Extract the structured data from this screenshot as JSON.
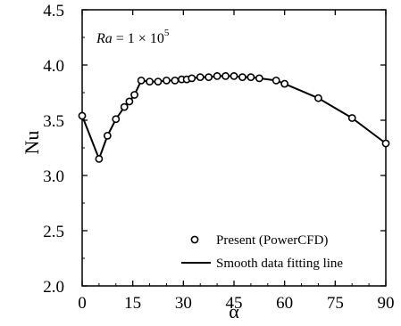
{
  "chart_data": {
    "type": "scatter",
    "title": "",
    "xlabel": "α",
    "ylabel": "Nu",
    "xlim": [
      0,
      90
    ],
    "ylim": [
      2.0,
      4.5
    ],
    "xticks": [
      "0",
      "15",
      "30",
      "45",
      "60",
      "75",
      "90"
    ],
    "xtick_values": [
      0,
      15,
      30,
      45,
      60,
      75,
      90
    ],
    "yticks": [
      "2.0",
      "2.5",
      "3.0",
      "3.5",
      "4.0",
      "4.5"
    ],
    "ytick_values": [
      2.0,
      2.5,
      3.0,
      3.5,
      4.0,
      4.5
    ],
    "annotation": {
      "italic_part": "Ra",
      "rest": " = 1 × 10",
      "superscript": "5"
    },
    "legend_position": "bottom-right",
    "series": [
      {
        "name": "Present (PowerCFD)",
        "marker": "open-circle",
        "x": [
          0,
          5,
          7.5,
          10,
          12.5,
          14,
          15.5,
          17.5,
          20,
          22.5,
          25,
          27.5,
          29.5,
          31,
          32.5,
          35,
          37.5,
          40,
          42.5,
          45,
          47.5,
          50,
          52.5,
          57.5,
          60,
          70,
          80,
          90
        ],
        "y": [
          3.54,
          3.15,
          3.36,
          3.51,
          3.62,
          3.67,
          3.73,
          3.86,
          3.85,
          3.85,
          3.86,
          3.86,
          3.87,
          3.87,
          3.88,
          3.89,
          3.89,
          3.9,
          3.9,
          3.9,
          3.89,
          3.89,
          3.88,
          3.86,
          3.83,
          3.7,
          3.52,
          3.29
        ]
      },
      {
        "name": "Smooth data fitting line",
        "marker": "line",
        "x": [
          0,
          5,
          7.5,
          10,
          12.5,
          14,
          15.5,
          17.5,
          20,
          22.5,
          25,
          27.5,
          29.5,
          31,
          32.5,
          35,
          37.5,
          40,
          42.5,
          45,
          47.5,
          50,
          52.5,
          57.5,
          60,
          70,
          80,
          90
        ],
        "y": [
          3.54,
          3.15,
          3.36,
          3.51,
          3.62,
          3.67,
          3.73,
          3.86,
          3.85,
          3.85,
          3.86,
          3.86,
          3.87,
          3.87,
          3.88,
          3.89,
          3.89,
          3.9,
          3.9,
          3.9,
          3.89,
          3.89,
          3.88,
          3.86,
          3.83,
          3.7,
          3.52,
          3.29
        ]
      }
    ]
  }
}
